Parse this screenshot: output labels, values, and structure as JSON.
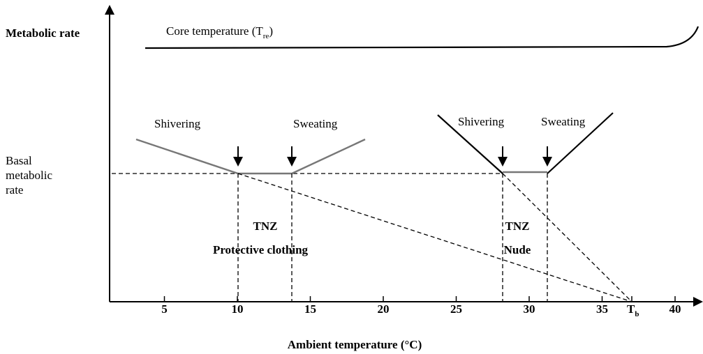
{
  "y_axis": {
    "label": "Metabolic rate",
    "basal_label": [
      "Basal",
      "metabolic",
      "rate"
    ]
  },
  "x_axis": {
    "label": "Ambient temperature (°C)",
    "ticks": [
      5,
      10,
      15,
      20,
      25,
      30,
      35,
      40
    ],
    "body_temp": {
      "main": "T",
      "sub": "b"
    }
  },
  "core_temperature": {
    "main": "Core temperature (T",
    "sub": "re",
    "close": ")"
  },
  "protective": {
    "left": "Shivering",
    "right": "Sweating",
    "zone": "TNZ",
    "condition": "Protective clothing"
  },
  "nude": {
    "left": "Shivering",
    "right": "Sweating",
    "zone": "TNZ",
    "condition": "Nude"
  }
}
